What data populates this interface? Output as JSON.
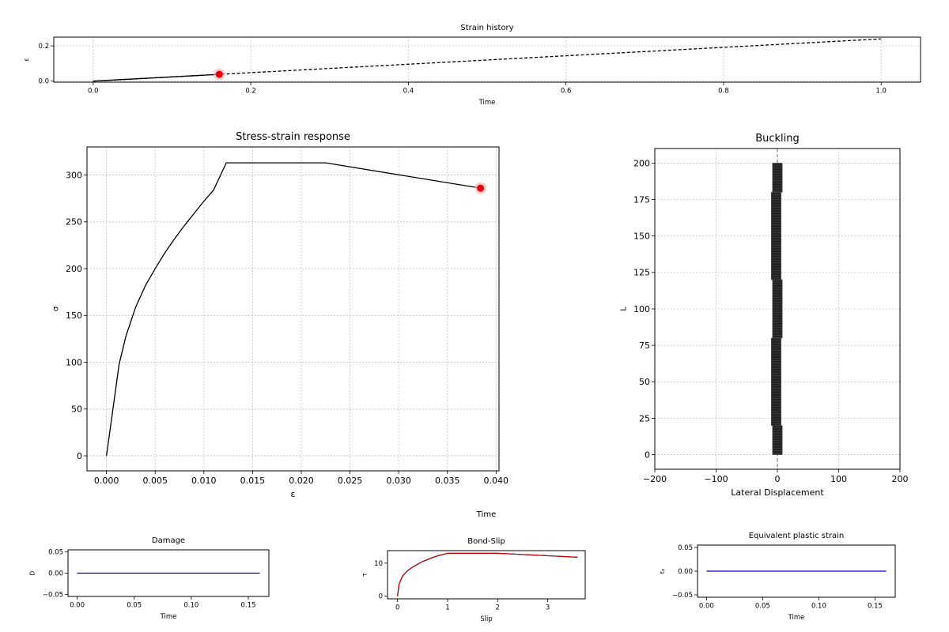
{
  "chart_data": [
    {
      "id": "strain",
      "type": "line",
      "title": "Strain history",
      "xlabel": "Time",
      "ylabel": "ε",
      "xlim": [
        -0.05,
        1.05
      ],
      "ylim": [
        -0.006,
        0.25
      ],
      "xticks": [
        0.0,
        0.2,
        0.4,
        0.6,
        0.8,
        1.0
      ],
      "xtick_labels": [
        "0.0",
        "0.2",
        "0.4",
        "0.6",
        "0.8",
        "1.0"
      ],
      "yticks": [
        0.0,
        0.2
      ],
      "ytick_labels": [
        "0.0",
        "0.2"
      ],
      "grid": true,
      "series": [
        {
          "style": "dashed",
          "color": "#000000",
          "x": [
            0.0,
            1.0
          ],
          "y": [
            0.0,
            0.24
          ]
        },
        {
          "style": "solid",
          "color": "#000000",
          "x": [
            0.0,
            0.16
          ],
          "y": [
            0.0,
            0.0384
          ]
        }
      ],
      "marker": {
        "x": 0.16,
        "y": 0.0384,
        "color": "#e8000b"
      }
    },
    {
      "id": "stress",
      "type": "line",
      "title": "Stress-strain response",
      "xlabel": "ε",
      "ylabel": "σ",
      "xlim": [
        -0.002,
        0.0403
      ],
      "ylim": [
        -16,
        330
      ],
      "xticks": [
        0.0,
        0.005,
        0.01,
        0.015,
        0.02,
        0.025,
        0.03,
        0.035,
        0.04
      ],
      "xtick_labels": [
        "0.000",
        "0.005",
        "0.010",
        "0.015",
        "0.020",
        "0.025",
        "0.030",
        "0.035",
        "0.040"
      ],
      "yticks": [
        0,
        50,
        100,
        150,
        200,
        250,
        300
      ],
      "ytick_labels": [
        "0",
        "50",
        "100",
        "150",
        "200",
        "250",
        "300"
      ],
      "grid": true,
      "series": [
        {
          "style": "solid",
          "color": "#000000",
          "x": [
            0,
            0.0013,
            0.002,
            0.003,
            0.004,
            0.005,
            0.006,
            0.007,
            0.008,
            0.009,
            0.01,
            0.011,
            0.0123,
            0.0225,
            0.0384
          ],
          "y": [
            0,
            98,
            128,
            159,
            182,
            200,
            217,
            232,
            246,
            259,
            272,
            284,
            313,
            313,
            286
          ]
        }
      ],
      "marker": {
        "x": 0.0384,
        "y": 286,
        "color": "#e8000b"
      }
    },
    {
      "id": "buckling",
      "type": "line",
      "title": "Buckling",
      "xlabel": "Lateral Displacement",
      "ylabel": "L",
      "xlim": [
        -200,
        200
      ],
      "ylim": [
        -10,
        210
      ],
      "xticks": [
        -200,
        -100,
        0,
        100,
        200
      ],
      "xtick_labels": [
        "−200",
        "−100",
        "0",
        "100",
        "200"
      ],
      "yticks": [
        0,
        25,
        50,
        75,
        100,
        125,
        150,
        175,
        200
      ],
      "ytick_labels": [
        "0",
        "25",
        "50",
        "75",
        "100",
        "125",
        "150",
        "175",
        "200"
      ],
      "grid": true,
      "centerline_x": 0,
      "segments": [
        {
          "x0": -8,
          "x1": 8,
          "y0": 0,
          "y1": 20
        },
        {
          "x0": -10,
          "x1": 6,
          "y0": 20,
          "y1": 80
        },
        {
          "x0": -8,
          "x1": 8,
          "y0": 80,
          "y1": 120
        },
        {
          "x0": -10,
          "x1": 6,
          "y0": 120,
          "y1": 180
        },
        {
          "x0": -8,
          "x1": 8,
          "y0": 180,
          "y1": 200
        }
      ]
    },
    {
      "id": "damage",
      "type": "line",
      "title": "Damage",
      "xlabel": "Time",
      "ylabel": "D",
      "xlim": [
        -0.008,
        0.168
      ],
      "ylim": [
        -0.055,
        0.055
      ],
      "xticks": [
        0.0,
        0.05,
        0.1,
        0.15
      ],
      "xtick_labels": [
        "0.00",
        "0.05",
        "0.10",
        "0.15"
      ],
      "yticks": [
        -0.05,
        0.0,
        0.05
      ],
      "ytick_labels": [
        "−0.05",
        "0.00",
        "0.05"
      ],
      "grid": false,
      "series": [
        {
          "style": "solid",
          "color": "#0000cc",
          "x": [
            0.0,
            0.16
          ],
          "y": [
            0.0,
            0.0
          ]
        }
      ]
    },
    {
      "id": "bond",
      "type": "line",
      "title": "Bond-Slip",
      "xlabel": "Slip",
      "ylabel": "τ",
      "xlim": [
        -0.2,
        3.75
      ],
      "ylim": [
        -0.8,
        13.8
      ],
      "xticks": [
        0,
        1,
        2,
        3
      ],
      "xtick_labels": [
        "0",
        "1",
        "2",
        "3"
      ],
      "yticks": [
        0,
        10
      ],
      "ytick_labels": [
        "0",
        "10"
      ],
      "grid": false,
      "series": [
        {
          "style": "solid",
          "color": "#000000",
          "x": [
            0.0,
            0.03,
            0.1,
            0.2,
            0.3,
            0.4,
            0.5,
            0.6,
            0.7,
            0.8,
            0.9,
            1.0,
            2.0,
            3.6
          ],
          "y": [
            0.0,
            3.6,
            6.1,
            7.7,
            8.8,
            9.7,
            10.5,
            11.1,
            11.7,
            12.2,
            12.6,
            13.0,
            13.0,
            11.8
          ]
        },
        {
          "style": "solid",
          "color": "#e8000b",
          "x": [
            0.0,
            0.03,
            0.1,
            0.2,
            0.3,
            0.4,
            0.5,
            0.6,
            0.7,
            0.8,
            0.9,
            1.0,
            2.0,
            3.6
          ],
          "y": [
            0.0,
            3.6,
            6.1,
            7.7,
            8.8,
            9.7,
            10.5,
            11.1,
            11.7,
            12.2,
            12.6,
            13.0,
            13.0,
            11.8
          ]
        }
      ]
    },
    {
      "id": "peeq",
      "type": "line",
      "title": "Equivalent plastic strain",
      "xlabel": "Time",
      "ylabel": "εₚ",
      "xlim": [
        -0.008,
        0.168
      ],
      "ylim": [
        -0.055,
        0.055
      ],
      "xticks": [
        0.0,
        0.05,
        0.1,
        0.15
      ],
      "xtick_labels": [
        "0.00",
        "0.05",
        "0.10",
        "0.15"
      ],
      "yticks": [
        -0.05,
        0.0,
        0.05
      ],
      "ytick_labels": [
        "−0.05",
        "0.00",
        "0.05"
      ],
      "grid": false,
      "series": [
        {
          "style": "solid",
          "color": "#0000cc",
          "x": [
            0.0,
            0.16
          ],
          "y": [
            0.0,
            0.0
          ]
        }
      ]
    }
  ],
  "stray_label": "Time"
}
